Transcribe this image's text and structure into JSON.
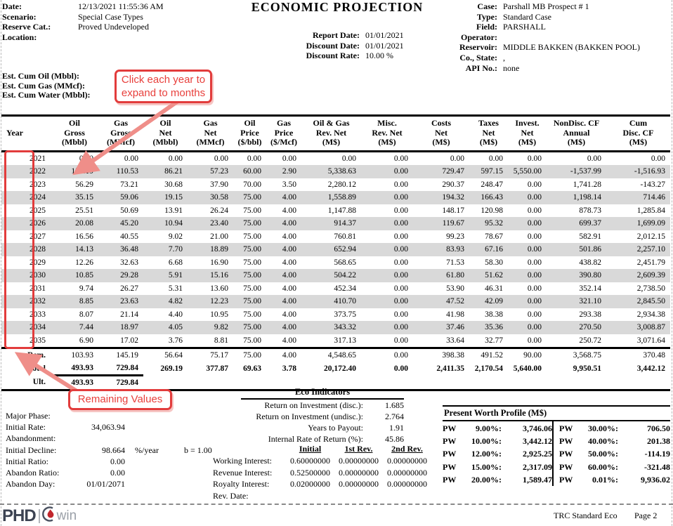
{
  "header": {
    "title": "ECONOMIC PROJECTION",
    "left": [
      {
        "label": "Date:",
        "value": "12/13/2021 11:55:36 AM"
      },
      {
        "label": "Scenario:",
        "value": "Special Case Types"
      },
      {
        "label": "Reserve Cat.:",
        "value": "Proved Undeveloped"
      },
      {
        "label": "Location:",
        "value": ""
      }
    ],
    "center": [
      {
        "label": "Report Date:",
        "value": "01/01/2021"
      },
      {
        "label": "Discount Date:",
        "value": "01/01/2021"
      },
      {
        "label": "Discount Rate:",
        "value": "10.00 %"
      }
    ],
    "right": [
      {
        "label": "Case:",
        "value": "Parshall MB Prospect # 1"
      },
      {
        "label": "Type:",
        "value": "Standard Case"
      },
      {
        "label": "Field:",
        "value": "PARSHALL"
      },
      {
        "label": "Operator:",
        "value": ""
      },
      {
        "label": "Reservoir:",
        "value": "MIDDLE BAKKEN (BAKKEN POOL)"
      },
      {
        "label": "Co., State:",
        "value": ","
      },
      {
        "label": "API No.:",
        "value": "none"
      }
    ],
    "est_cum": [
      {
        "label": "Est. Cum Oil (Mbbl):",
        "value": ""
      },
      {
        "label": "Est. Cum Gas (MMcf):",
        "value": ""
      },
      {
        "label": "Est. Cum Water (Mbbl):",
        "value": ""
      }
    ]
  },
  "annotations": {
    "expand_note": "Click each year to expand to months",
    "remaining_note": "Remaining Values",
    "accent_color": "#e23c3c",
    "arrow_color": "#ef8e89"
  },
  "table": {
    "columns": [
      [
        "Year"
      ],
      [
        "Oil",
        "Gross",
        "(Mbbl)"
      ],
      [
        "Gas",
        "Gross",
        "(MMcf)"
      ],
      [
        "Oil",
        "Net",
        "(Mbbl)"
      ],
      [
        "Gas",
        "Net",
        "(MMcf)"
      ],
      [
        "Oil",
        "Price",
        "($/bbl)"
      ],
      [
        "Gas",
        "Price",
        "($/Mcf)"
      ],
      [
        "Oil & Gas",
        "Rev. Net",
        "(M$)"
      ],
      [
        "Misc.",
        "Rev. Net",
        "(M$)"
      ],
      [
        "Costs",
        "Net",
        "(M$)"
      ],
      [
        "Taxes",
        "Net",
        "(M$)"
      ],
      [
        "Invest.",
        "Net",
        "(M$)"
      ],
      [
        "NonDisc. CF",
        "Annual",
        "(M$)"
      ],
      [
        "Cum",
        "Disc. CF",
        "(M$)"
      ]
    ],
    "rows": [
      {
        "year": "2021",
        "values": [
          "0.00",
          "0.00",
          "0.00",
          "0.00",
          "0.00",
          "0.00",
          "0.00",
          "0.00",
          "0.00",
          "0.00",
          "0.00",
          "0.00",
          "0.00"
        ]
      },
      {
        "year": "2022",
        "values": [
          "158.19",
          "110.53",
          "86.21",
          "57.23",
          "60.00",
          "2.90",
          "5,338.63",
          "0.00",
          "729.47",
          "597.15",
          "5,550.00",
          "-1,537.99",
          "-1,516.93"
        ]
      },
      {
        "year": "2023",
        "values": [
          "56.29",
          "73.21",
          "30.68",
          "37.90",
          "70.00",
          "3.50",
          "2,280.12",
          "0.00",
          "290.37",
          "248.47",
          "0.00",
          "1,741.28",
          "-143.27"
        ]
      },
      {
        "year": "2024",
        "values": [
          "35.15",
          "59.06",
          "19.15",
          "30.58",
          "75.00",
          "4.00",
          "1,558.89",
          "0.00",
          "194.32",
          "166.43",
          "0.00",
          "1,198.14",
          "714.46"
        ]
      },
      {
        "year": "2025",
        "values": [
          "25.51",
          "50.69",
          "13.91",
          "26.24",
          "75.00",
          "4.00",
          "1,147.88",
          "0.00",
          "148.17",
          "120.98",
          "0.00",
          "878.73",
          "1,285.84"
        ]
      },
      {
        "year": "2026",
        "values": [
          "20.08",
          "45.20",
          "10.94",
          "23.40",
          "75.00",
          "4.00",
          "914.37",
          "0.00",
          "119.67",
          "95.32",
          "0.00",
          "699.37",
          "1,699.09"
        ]
      },
      {
        "year": "2027",
        "values": [
          "16.56",
          "40.55",
          "9.02",
          "21.00",
          "75.00",
          "4.00",
          "760.81",
          "0.00",
          "99.23",
          "78.67",
          "0.00",
          "582.91",
          "2,012.15"
        ]
      },
      {
        "year": "2028",
        "values": [
          "14.13",
          "36.48",
          "7.70",
          "18.89",
          "75.00",
          "4.00",
          "652.94",
          "0.00",
          "83.93",
          "67.16",
          "0.00",
          "501.86",
          "2,257.10"
        ]
      },
      {
        "year": "2029",
        "values": [
          "12.26",
          "32.63",
          "6.68",
          "16.90",
          "75.00",
          "4.00",
          "568.65",
          "0.00",
          "71.53",
          "58.30",
          "0.00",
          "438.82",
          "2,451.79"
        ]
      },
      {
        "year": "2030",
        "values": [
          "10.85",
          "29.28",
          "5.91",
          "15.16",
          "75.00",
          "4.00",
          "504.22",
          "0.00",
          "61.80",
          "51.62",
          "0.00",
          "390.80",
          "2,609.39"
        ]
      },
      {
        "year": "2031",
        "values": [
          "9.74",
          "26.27",
          "5.31",
          "13.60",
          "75.00",
          "4.00",
          "452.34",
          "0.00",
          "53.90",
          "46.31",
          "0.00",
          "352.14",
          "2,738.50"
        ]
      },
      {
        "year": "2032",
        "values": [
          "8.85",
          "23.63",
          "4.82",
          "12.23",
          "75.00",
          "4.00",
          "410.70",
          "0.00",
          "47.52",
          "42.09",
          "0.00",
          "321.10",
          "2,845.50"
        ]
      },
      {
        "year": "2033",
        "values": [
          "8.07",
          "21.14",
          "4.40",
          "10.95",
          "75.00",
          "4.00",
          "373.75",
          "0.00",
          "41.98",
          "38.38",
          "0.00",
          "293.38",
          "2,934.38"
        ]
      },
      {
        "year": "2034",
        "values": [
          "7.44",
          "18.97",
          "4.05",
          "9.82",
          "75.00",
          "4.00",
          "343.32",
          "0.00",
          "37.46",
          "35.36",
          "0.00",
          "270.50",
          "3,008.87"
        ]
      },
      {
        "year": "2035",
        "values": [
          "6.90",
          "17.02",
          "3.76",
          "8.81",
          "75.00",
          "4.00",
          "317.13",
          "0.00",
          "33.64",
          "32.77",
          "0.00",
          "250.72",
          "3,071.64"
        ]
      }
    ],
    "summary": [
      {
        "label": "Rem.",
        "bold": false,
        "underline_first_two": false,
        "values": [
          "103.93",
          "145.19",
          "56.64",
          "75.17",
          "75.00",
          "4.00",
          "4,548.65",
          "0.00",
          "398.38",
          "491.52",
          "90.00",
          "3,568.75",
          "370.48"
        ]
      },
      {
        "label": "Total",
        "bold": true,
        "underline_first_two": true,
        "values": [
          "493.93",
          "729.84",
          "269.19",
          "377.87",
          "69.63",
          "3.78",
          "20,172.40",
          "0.00",
          "2,411.35",
          "2,170.54",
          "5,640.00",
          "9,950.51",
          "3,442.12"
        ]
      },
      {
        "label": "Ult.",
        "bold": true,
        "underline_first_two": false,
        "values": [
          "493.93",
          "729.84",
          "",
          "",
          "",
          "",
          "",
          "",
          "",
          "",
          "",
          "",
          ""
        ]
      }
    ]
  },
  "decline": [
    {
      "label": "Major Phase:",
      "value": ""
    },
    {
      "label": "Initial Rate:",
      "value": "34,063.94"
    },
    {
      "label": "Abandonment:",
      "value": ""
    },
    {
      "label": "Initial Decline:",
      "value": "98.664",
      "unit": "%/year",
      "extra": "b = 1.00"
    },
    {
      "label": "Initial Ratio:",
      "value": "0.00"
    },
    {
      "label": "Abandon Ratio:",
      "value": "0.00"
    },
    {
      "label": "Abandon Day:",
      "value": "01/01/2071"
    }
  ],
  "eco_indicators": {
    "title": "Eco Indicators",
    "rows": [
      {
        "label": "Return on Investment (disc.):",
        "value": "1.685"
      },
      {
        "label": "Return on Investment (undisc.):",
        "value": "2.764"
      },
      {
        "label": "Years to Payout:",
        "value": "1.91"
      },
      {
        "label": "Internal Rate of Return (%):",
        "value": "45.86"
      }
    ]
  },
  "interests": {
    "col_headers": [
      "Initial",
      "1st Rev.",
      "2nd Rev."
    ],
    "rows": [
      {
        "label": "Working Interest:",
        "values": [
          "0.60000000",
          "0.00000000",
          "0.00000000"
        ]
      },
      {
        "label": "Revenue Interest:",
        "values": [
          "0.52500000",
          "0.00000000",
          "0.00000000"
        ]
      },
      {
        "label": "Royalty Interest:",
        "values": [
          "0.02000000",
          "0.00000000",
          "0.00000000"
        ]
      },
      {
        "label": "Rev. Date:",
        "values": [
          "",
          "",
          ""
        ]
      }
    ]
  },
  "pw_profile": {
    "title": "Present Worth Profile (M$)",
    "left": [
      {
        "label": "PW",
        "rate": "9.00%:",
        "value": "3,746.06"
      },
      {
        "label": "PW",
        "rate": "10.00%:",
        "value": "3,442.12"
      },
      {
        "label": "PW",
        "rate": "12.00%:",
        "value": "2,925.25"
      },
      {
        "label": "PW",
        "rate": "15.00%:",
        "value": "2,317.09"
      },
      {
        "label": "PW",
        "rate": "20.00%:",
        "value": "1,589.47"
      }
    ],
    "right": [
      {
        "label": "PW",
        "rate": "30.00%:",
        "value": "706.50"
      },
      {
        "label": "PW",
        "rate": "40.00%:",
        "value": "201.38"
      },
      {
        "label": "PW",
        "rate": "50.00%:",
        "value": "-114.19"
      },
      {
        "label": "PW",
        "rate": "60.00%:",
        "value": "-321.48"
      },
      {
        "label": "PW",
        "rate": "0.01%:",
        "value": "9,936.02"
      }
    ]
  },
  "footer": {
    "logo_phd": "PHD",
    "logo_win": "win",
    "logo_icon": "flame-icon",
    "report_name": "TRC Standard Eco",
    "page": "Page 2"
  },
  "colors": {
    "annotation_red": "#e23c3c",
    "arrow_salmon": "#ef8e89",
    "row_alt_gray": "#d9d9d9",
    "logo_dark": "#3c4352",
    "logo_gray": "#9aa0a8",
    "flame_red": "#c1272d"
  }
}
